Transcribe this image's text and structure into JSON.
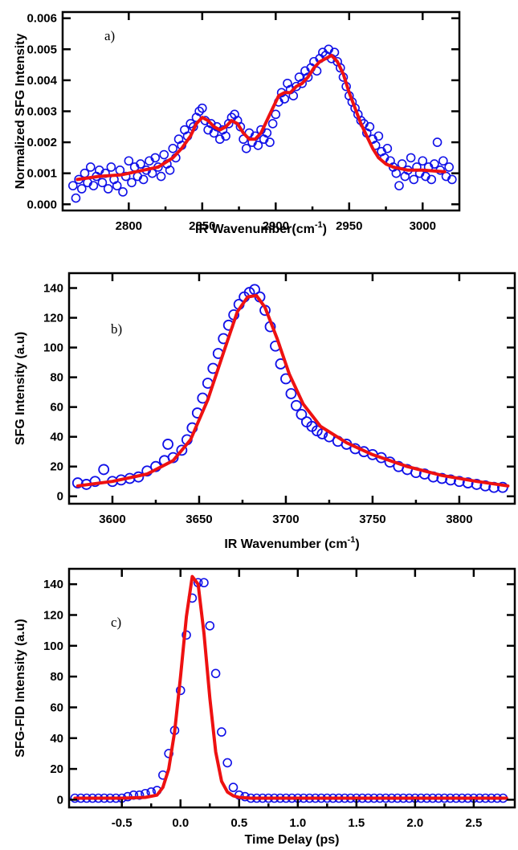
{
  "colors": {
    "points": "#1010e8",
    "fit": "#ee1111",
    "axes": "#000000"
  },
  "chart_data": [
    {
      "type": "scatter",
      "panel_label": "a)",
      "xlabel": "IR Wavenumber(cm",
      "xlabel_sup": "-1",
      "xlabel_end": ")",
      "ylabel": "Normalized SFG Intensity",
      "xlim": [
        2755,
        3025
      ],
      "ylim": [
        -0.0002,
        0.0062
      ],
      "xticks": [
        2800,
        2850,
        2900,
        2950,
        3000
      ],
      "xtick_labels": [
        "2800",
        "2850",
        "2900",
        "2950",
        "3000"
      ],
      "yticks": [
        0,
        0.001,
        0.002,
        0.003,
        0.004,
        0.005,
        0.006
      ],
      "ytick_labels": [
        "0.000",
        "0.001",
        "0.002",
        "0.003",
        "0.004",
        "0.005",
        "0.006"
      ],
      "marker_size": 5,
      "series": [
        {
          "kind": "points",
          "x": [
            2762,
            2764,
            2766,
            2768,
            2770,
            2772,
            2774,
            2776,
            2778,
            2780,
            2782,
            2784,
            2786,
            2788,
            2790,
            2792,
            2794,
            2796,
            2798,
            2800,
            2802,
            2804,
            2806,
            2808,
            2810,
            2812,
            2814,
            2816,
            2818,
            2820,
            2822,
            2824,
            2826,
            2828,
            2830,
            2832,
            2834,
            2836,
            2838,
            2840,
            2842,
            2844,
            2846,
            2848,
            2850,
            2852,
            2854,
            2856,
            2858,
            2860,
            2862,
            2864,
            2866,
            2868,
            2870,
            2872,
            2874,
            2876,
            2878,
            2880,
            2882,
            2884,
            2886,
            2888,
            2890,
            2892,
            2894,
            2896,
            2898,
            2900,
            2902,
            2904,
            2906,
            2908,
            2910,
            2912,
            2914,
            2916,
            2918,
            2920,
            2922,
            2924,
            2926,
            2928,
            2930,
            2932,
            2934,
            2936,
            2938,
            2940,
            2942,
            2944,
            2946,
            2948,
            2950,
            2952,
            2954,
            2956,
            2958,
            2960,
            2962,
            2964,
            2966,
            2968,
            2970,
            2972,
            2974,
            2976,
            2978,
            2980,
            2982,
            2984,
            2986,
            2988,
            2990,
            2992,
            2994,
            2996,
            2998,
            3000,
            3002,
            3004,
            3006,
            3008,
            3010,
            3012,
            3014,
            3016,
            3018,
            3020
          ],
          "y": [
            0.0006,
            0.0002,
            0.0008,
            0.0005,
            0.001,
            0.0007,
            0.0012,
            0.0006,
            0.0009,
            0.0011,
            0.0007,
            0.001,
            0.0005,
            0.0012,
            0.0008,
            0.0006,
            0.0011,
            0.0004,
            0.0009,
            0.0014,
            0.0007,
            0.0012,
            0.0009,
            0.0013,
            0.0008,
            0.0011,
            0.0014,
            0.001,
            0.0015,
            0.0012,
            0.0009,
            0.0016,
            0.0013,
            0.0011,
            0.0018,
            0.0015,
            0.0021,
            0.0019,
            0.0024,
            0.0022,
            0.0026,
            0.0025,
            0.0028,
            0.003,
            0.0031,
            0.0027,
            0.0024,
            0.0026,
            0.0023,
            0.0025,
            0.0021,
            0.0024,
            0.0022,
            0.0026,
            0.0028,
            0.0029,
            0.0027,
            0.0025,
            0.0021,
            0.0018,
            0.0023,
            0.002,
            0.0022,
            0.0019,
            0.0024,
            0.0021,
            0.0023,
            0.002,
            0.0026,
            0.0029,
            0.0033,
            0.0036,
            0.0034,
            0.0039,
            0.0037,
            0.0035,
            0.0038,
            0.0041,
            0.0039,
            0.0043,
            0.0041,
            0.0044,
            0.0046,
            0.0043,
            0.0047,
            0.0049,
            0.0048,
            0.005,
            0.0047,
            0.0049,
            0.0046,
            0.0044,
            0.0041,
            0.0038,
            0.0035,
            0.0033,
            0.0031,
            0.0029,
            0.0027,
            0.0026,
            0.0023,
            0.0025,
            0.0021,
            0.0019,
            0.0022,
            0.0017,
            0.0015,
            0.0018,
            0.0014,
            0.0012,
            0.001,
            0.0006,
            0.0013,
            0.0009,
            0.0011,
            0.0015,
            0.0008,
            0.0012,
            0.001,
            0.0014,
            0.0009,
            0.0012,
            0.0008,
            0.0013,
            0.002,
            0.0011,
            0.0014,
            0.0009,
            0.0012,
            0.0008
          ]
        },
        {
          "kind": "fit",
          "x": [
            2765,
            2780,
            2795,
            2810,
            2820,
            2830,
            2836,
            2842,
            2846,
            2850,
            2854,
            2858,
            2862,
            2866,
            2870,
            2874,
            2878,
            2882,
            2886,
            2890,
            2894,
            2898,
            2902,
            2906,
            2910,
            2914,
            2918,
            2922,
            2926,
            2930,
            2934,
            2938,
            2942,
            2946,
            2950,
            2954,
            2958,
            2962,
            2966,
            2970,
            2975,
            2980,
            2990,
            3000,
            3015
          ],
          "y": [
            0.0008,
            0.0009,
            0.00095,
            0.0011,
            0.0012,
            0.0015,
            0.0018,
            0.0022,
            0.0026,
            0.0028,
            0.0027,
            0.0025,
            0.0024,
            0.0025,
            0.0027,
            0.0026,
            0.0023,
            0.0021,
            0.0021,
            0.0023,
            0.0027,
            0.0031,
            0.0035,
            0.0036,
            0.0036,
            0.0038,
            0.0039,
            0.0041,
            0.0044,
            0.0046,
            0.0047,
            0.0048,
            0.0046,
            0.0042,
            0.0036,
            0.0031,
            0.0026,
            0.0022,
            0.0018,
            0.0015,
            0.0013,
            0.0012,
            0.0011,
            0.0011,
            0.00105
          ]
        }
      ]
    },
    {
      "type": "scatter",
      "panel_label": "b)",
      "xlabel": "IR Wavenumber (cm",
      "xlabel_sup": "-1",
      "xlabel_end": ")",
      "ylabel": "SFG Intensity (a.u)",
      "xlim": [
        3575,
        3832
      ],
      "ylim": [
        -5,
        150
      ],
      "xticks": [
        3600,
        3650,
        3700,
        3750,
        3800
      ],
      "xtick_labels": [
        "3600",
        "3650",
        "3700",
        "3750",
        "3800"
      ],
      "yticks": [
        0,
        20,
        40,
        60,
        80,
        100,
        120,
        140
      ],
      "ytick_labels": [
        "0",
        "20",
        "40",
        "60",
        "80",
        "100",
        "120",
        "140"
      ],
      "marker_size": 6,
      "series": [
        {
          "kind": "points",
          "x": [
            3580,
            3585,
            3590,
            3595,
            3600,
            3605,
            3610,
            3615,
            3620,
            3625,
            3630,
            3632,
            3635,
            3640,
            3643,
            3646,
            3649,
            3652,
            3655,
            3658,
            3661,
            3664,
            3667,
            3670,
            3673,
            3676,
            3679,
            3682,
            3685,
            3688,
            3691,
            3694,
            3697,
            3700,
            3703,
            3706,
            3709,
            3712,
            3715,
            3718,
            3721,
            3725,
            3730,
            3735,
            3740,
            3745,
            3750,
            3755,
            3760,
            3765,
            3770,
            3775,
            3780,
            3785,
            3790,
            3795,
            3800,
            3805,
            3810,
            3815,
            3820,
            3825
          ],
          "y": [
            9,
            8,
            10,
            18,
            10,
            11,
            12,
            13,
            17,
            20,
            24,
            35,
            26,
            31,
            38,
            46,
            56,
            66,
            76,
            86,
            96,
            106,
            115,
            122,
            129,
            134,
            137,
            139,
            134,
            125,
            114,
            101,
            89,
            79,
            69,
            61,
            55,
            50,
            47,
            44,
            42,
            40,
            37,
            35,
            32,
            30,
            28,
            26,
            23,
            20,
            18,
            16,
            15,
            13,
            12,
            11,
            10,
            9,
            8,
            7,
            6,
            6
          ]
        },
        {
          "kind": "fit",
          "x": [
            3580,
            3600,
            3620,
            3635,
            3645,
            3655,
            3665,
            3672,
            3678,
            3683,
            3688,
            3695,
            3702,
            3710,
            3720,
            3735,
            3750,
            3770,
            3790,
            3810,
            3828
          ],
          "y": [
            7,
            10,
            15,
            24,
            38,
            65,
            100,
            124,
            134,
            135,
            127,
            106,
            82,
            62,
            47,
            36,
            28,
            20,
            14,
            10,
            7
          ]
        }
      ]
    },
    {
      "type": "scatter",
      "panel_label": "c)",
      "xlabel": "Time Delay (ps)",
      "ylabel": "SFG-FID Intensity (a.u)",
      "xlim": [
        -0.95,
        2.85
      ],
      "ylim": [
        -5,
        150
      ],
      "xticks": [
        -0.5,
        0,
        0.5,
        1,
        1.5,
        2,
        2.5
      ],
      "xtick_labels": [
        "-0.5",
        "0.0",
        "0.5",
        "1.0",
        "1.5",
        "2.0",
        "2.5"
      ],
      "yticks": [
        0,
        20,
        40,
        60,
        80,
        100,
        120,
        140
      ],
      "ytick_labels": [
        "0",
        "20",
        "40",
        "60",
        "80",
        "100",
        "120",
        "140"
      ],
      "marker_size": 5,
      "series": [
        {
          "kind": "points",
          "x": [
            -0.9,
            -0.85,
            -0.8,
            -0.75,
            -0.7,
            -0.65,
            -0.6,
            -0.55,
            -0.5,
            -0.45,
            -0.4,
            -0.35,
            -0.3,
            -0.25,
            -0.2,
            -0.15,
            -0.1,
            -0.05,
            0,
            0.05,
            0.1,
            0.15,
            0.2,
            0.25,
            0.3,
            0.35,
            0.4,
            0.45,
            0.5,
            0.55,
            0.6,
            0.65,
            0.7,
            0.75,
            0.8,
            0.85,
            0.9,
            0.95,
            1,
            1.05,
            1.1,
            1.15,
            1.2,
            1.25,
            1.3,
            1.35,
            1.4,
            1.45,
            1.5,
            1.55,
            1.6,
            1.65,
            1.7,
            1.75,
            1.8,
            1.85,
            1.9,
            1.95,
            2,
            2.05,
            2.1,
            2.15,
            2.2,
            2.25,
            2.3,
            2.35,
            2.4,
            2.45,
            2.5,
            2.55,
            2.6,
            2.65,
            2.7,
            2.75
          ],
          "y": [
            1,
            1,
            1,
            1,
            1,
            1,
            1,
            1,
            1,
            2,
            3,
            3,
            4,
            5,
            6,
            16,
            30,
            45,
            71,
            107,
            131,
            141,
            141,
            113,
            82,
            44,
            24,
            8,
            3,
            2,
            1,
            1,
            1,
            1,
            1,
            1,
            1,
            1,
            1,
            1,
            1,
            1,
            1,
            1,
            1,
            1,
            1,
            1,
            1,
            1,
            1,
            1,
            1,
            1,
            1,
            1,
            1,
            1,
            1,
            1,
            1,
            1,
            1,
            1,
            1,
            1,
            1,
            1,
            1,
            1,
            1,
            1,
            1,
            1
          ]
        },
        {
          "kind": "fit",
          "x": [
            -0.9,
            -0.5,
            -0.3,
            -0.2,
            -0.15,
            -0.1,
            -0.05,
            0,
            0.05,
            0.1,
            0.15,
            0.2,
            0.25,
            0.3,
            0.35,
            0.4,
            0.45,
            0.5,
            0.6,
            0.8,
            1,
            1.5,
            2,
            2.5,
            2.78
          ],
          "y": [
            1,
            1,
            1.5,
            3,
            8,
            20,
            44,
            80,
            119,
            145,
            140,
            108,
            66,
            31,
            12,
            5,
            2.5,
            1.5,
            1,
            1,
            1,
            1,
            1,
            1,
            1
          ]
        }
      ]
    }
  ]
}
